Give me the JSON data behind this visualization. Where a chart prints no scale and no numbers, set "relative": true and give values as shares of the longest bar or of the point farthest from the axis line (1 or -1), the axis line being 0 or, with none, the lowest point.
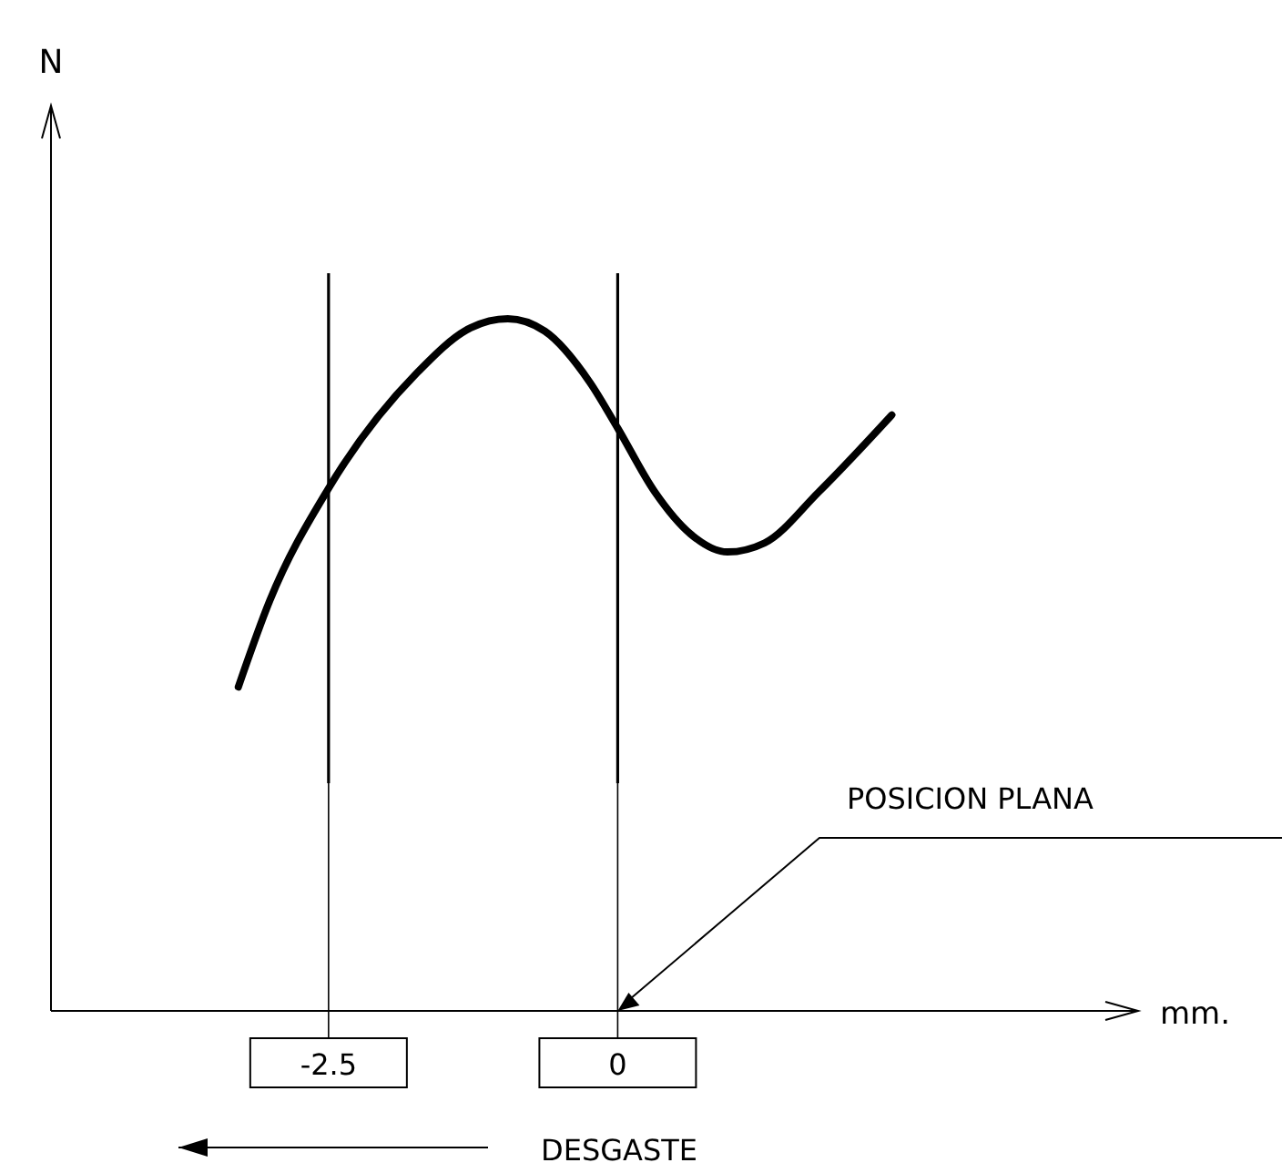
{
  "chart_data": {
    "type": "line",
    "relative": true,
    "xlabel": "mm.",
    "xlim": [
      -4.9,
      4.5
    ],
    "xticks": [
      -2.5,
      0
    ],
    "x": [
      -3.28,
      -3.01,
      -2.5,
      -1.74,
      -1.27,
      -0.95,
      -0.63,
      -0.24,
      0,
      0.32,
      0.63,
      0.95,
      1.27,
      1.74,
      2.37
    ],
    "series": [
      {
        "color": "#000000",
        "values": [
          0.468,
          0.592,
          0.755,
          0.921,
          0.987,
          1.0,
          0.982,
          0.908,
          0.842,
          0.75,
          0.689,
          0.663,
          0.676,
          0.75,
          0.861
        ]
      }
    ],
    "ref_lines": [
      {
        "axis": "x",
        "value": -2.5,
        "color": "#000000"
      },
      {
        "axis": "x",
        "value": 0,
        "color": "#000000"
      }
    ],
    "annotations": [
      {
        "text": "POSICION PLANA",
        "x": 0,
        "y": 0
      },
      "DESGASTE",
      "N"
    ]
  }
}
